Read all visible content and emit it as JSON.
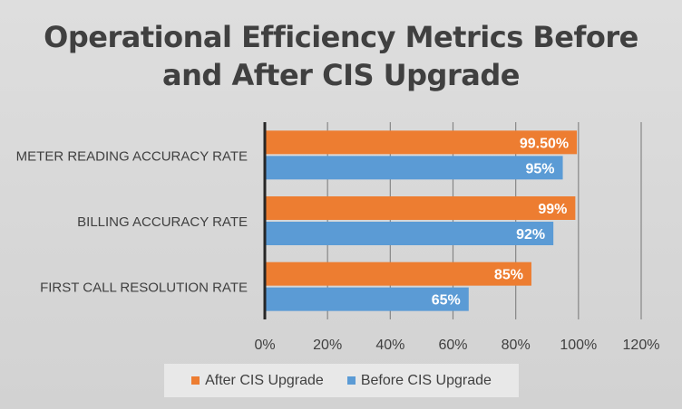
{
  "chart_data": {
    "type": "bar",
    "orientation": "horizontal",
    "title_lines": [
      "Operational Efficiency Metrics Before",
      "and After CIS Upgrade"
    ],
    "categories": [
      "METER READING ACCURACY RATE",
      "BILLING ACCURACY RATE",
      "FIRST CALL RESOLUTION RATE"
    ],
    "series": [
      {
        "name": "After CIS Upgrade",
        "color": "#ed7d31",
        "values": [
          99.5,
          99,
          85
        ],
        "labels": [
          "99.50%",
          "99%",
          "85%"
        ]
      },
      {
        "name": "Before CIS Upgrade",
        "color": "#5b9bd5",
        "values": [
          95,
          92,
          65
        ],
        "labels": [
          "95%",
          "92%",
          "65%"
        ]
      }
    ],
    "xlim": [
      0,
      120
    ],
    "xticks": [
      "0%",
      "20%",
      "40%",
      "60%",
      "80%",
      "100%",
      "120%"
    ],
    "grid": true,
    "legend_position": "bottom"
  }
}
